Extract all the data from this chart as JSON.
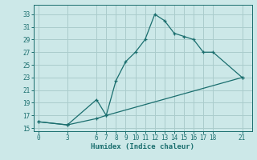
{
  "xlabel": "Humidex (Indice chaleur)",
  "bg_color": "#cce8e8",
  "grid_color": "#aacccc",
  "line_color": "#1a6e6e",
  "x_upper": [
    0,
    3,
    6,
    7,
    8,
    9,
    10,
    11,
    12,
    13,
    14,
    15,
    16,
    17,
    18,
    21
  ],
  "y_upper": [
    16.0,
    15.5,
    19.5,
    17.0,
    22.5,
    25.5,
    27.0,
    29.0,
    33.0,
    32.0,
    30.0,
    29.5,
    29.0,
    27.0,
    27.0,
    23.0
  ],
  "x_lower": [
    0,
    3,
    6,
    7,
    21
  ],
  "y_lower": [
    16.0,
    15.5,
    16.5,
    17.0,
    23.0
  ],
  "xlim": [
    -0.5,
    22
  ],
  "ylim": [
    14.5,
    34.5
  ],
  "xticks": [
    0,
    3,
    6,
    7,
    8,
    9,
    10,
    11,
    12,
    13,
    14,
    15,
    16,
    17,
    18,
    21
  ],
  "yticks": [
    15,
    17,
    19,
    21,
    23,
    25,
    27,
    29,
    31,
    33
  ],
  "tick_fontsize": 5.5,
  "xlabel_fontsize": 6.5
}
